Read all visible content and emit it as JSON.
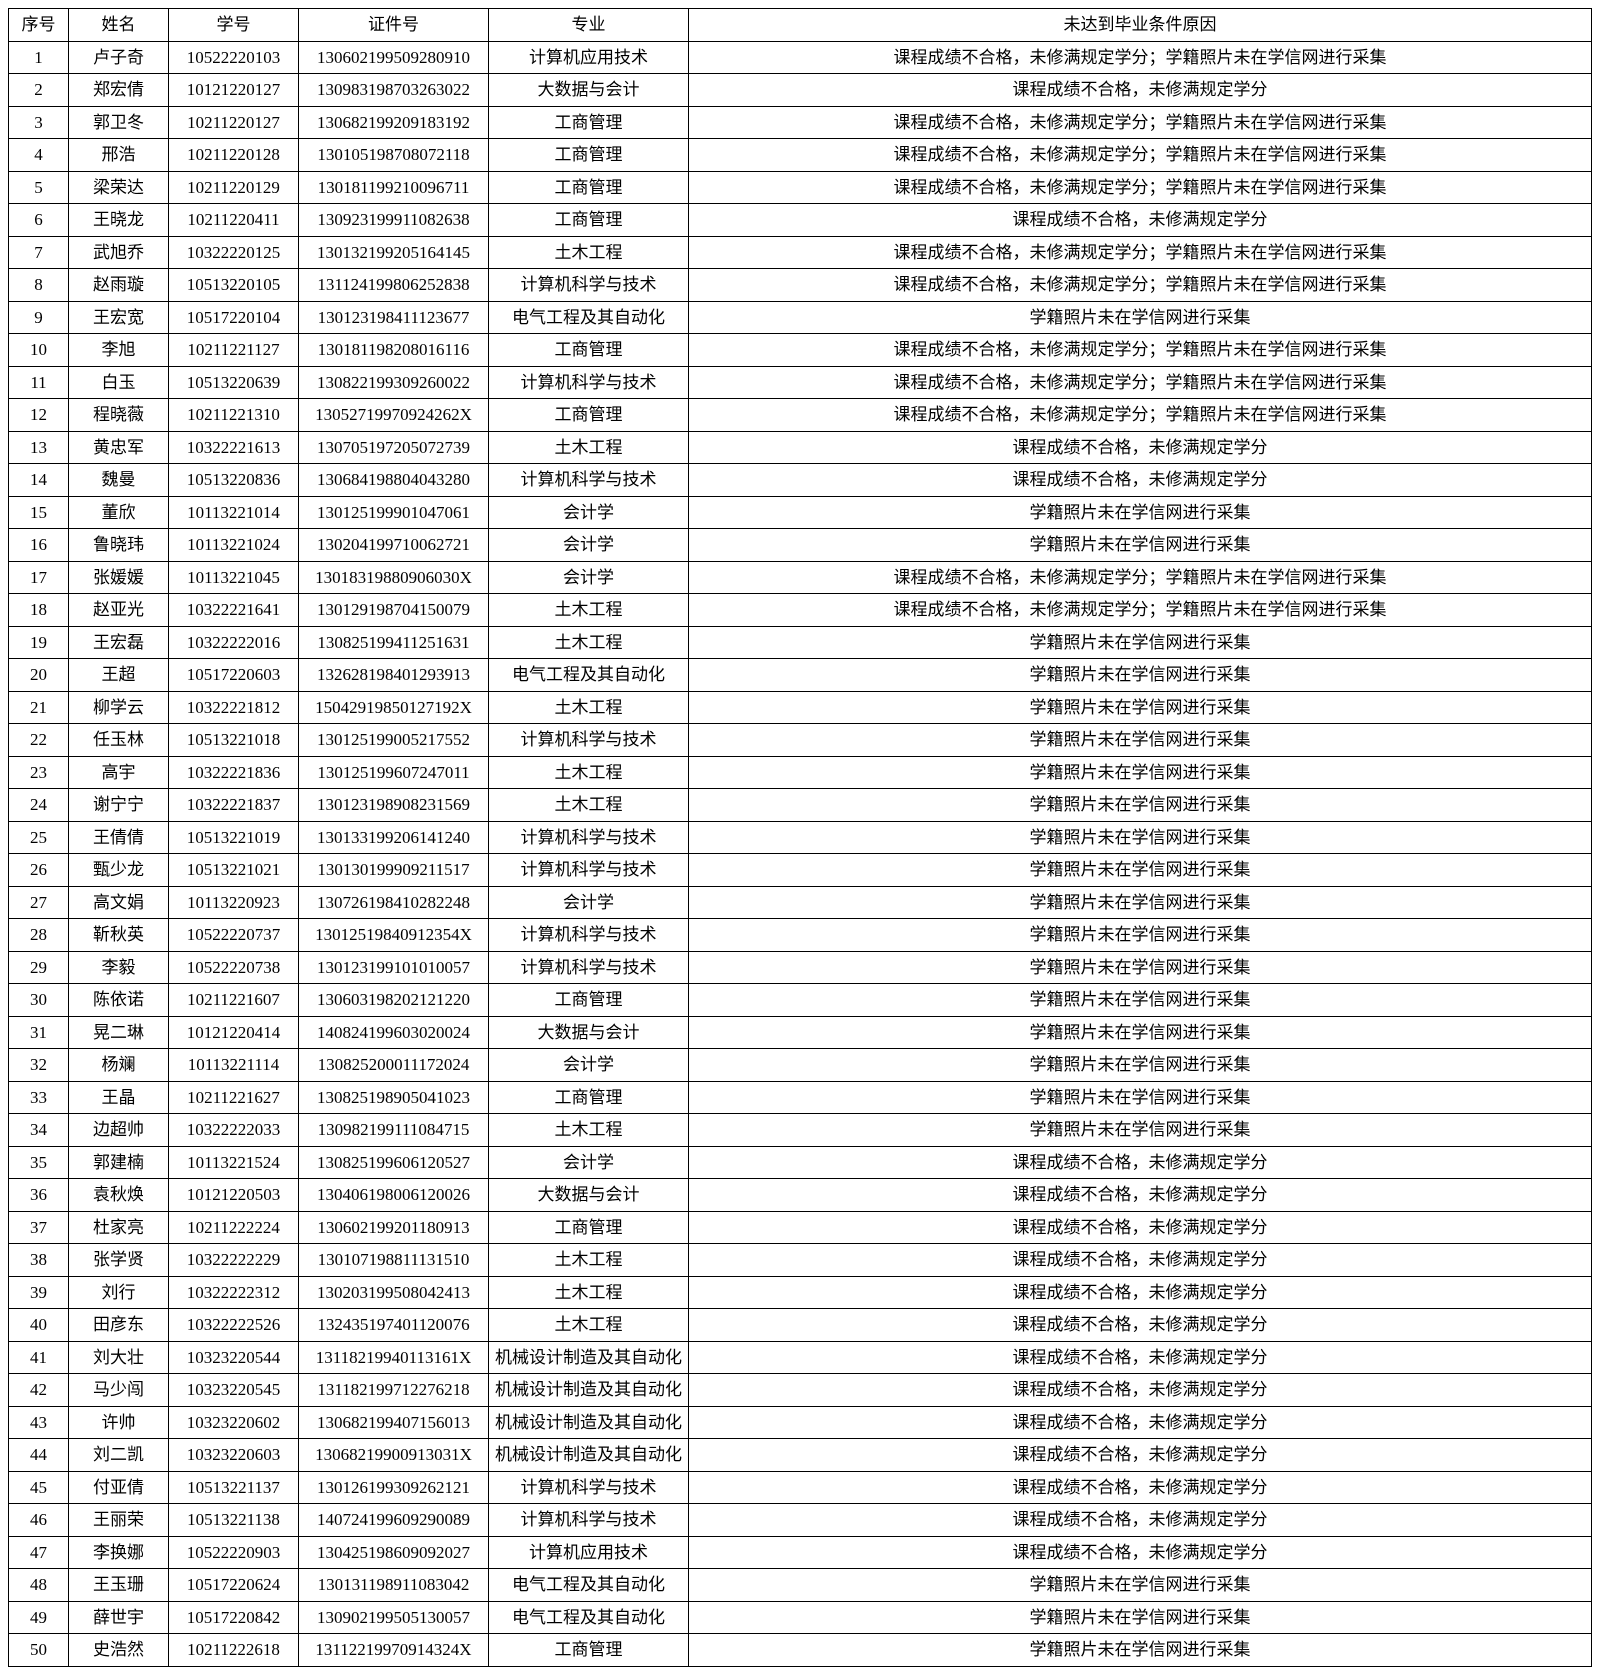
{
  "table": {
    "headers": {
      "seq": "序号",
      "name": "姓名",
      "studentId": "学号",
      "certId": "证件号",
      "major": "专业",
      "reason": "未达到毕业条件原因"
    },
    "rows": [
      {
        "seq": "1",
        "name": "卢子奇",
        "studentId": "10522220103",
        "certId": "130602199509280910",
        "major": "计算机应用技术",
        "reason": "课程成绩不合格，未修满规定学分；学籍照片未在学信网进行采集"
      },
      {
        "seq": "2",
        "name": "郑宏倩",
        "studentId": "10121220127",
        "certId": "130983198703263022",
        "major": "大数据与会计",
        "reason": "课程成绩不合格，未修满规定学分"
      },
      {
        "seq": "3",
        "name": "郭卫冬",
        "studentId": "10211220127",
        "certId": "130682199209183192",
        "major": "工商管理",
        "reason": "课程成绩不合格，未修满规定学分；学籍照片未在学信网进行采集"
      },
      {
        "seq": "4",
        "name": "邢浩",
        "studentId": "10211220128",
        "certId": "130105198708072118",
        "major": "工商管理",
        "reason": "课程成绩不合格，未修满规定学分；学籍照片未在学信网进行采集"
      },
      {
        "seq": "5",
        "name": "梁荣达",
        "studentId": "10211220129",
        "certId": "130181199210096711",
        "major": "工商管理",
        "reason": "课程成绩不合格，未修满规定学分；学籍照片未在学信网进行采集"
      },
      {
        "seq": "6",
        "name": "王晓龙",
        "studentId": "10211220411",
        "certId": "130923199911082638",
        "major": "工商管理",
        "reason": "课程成绩不合格，未修满规定学分"
      },
      {
        "seq": "7",
        "name": "武旭乔",
        "studentId": "10322220125",
        "certId": "130132199205164145",
        "major": "土木工程",
        "reason": "课程成绩不合格，未修满规定学分；学籍照片未在学信网进行采集"
      },
      {
        "seq": "8",
        "name": "赵雨璇",
        "studentId": "10513220105",
        "certId": "131124199806252838",
        "major": "计算机科学与技术",
        "reason": "课程成绩不合格，未修满规定学分；学籍照片未在学信网进行采集"
      },
      {
        "seq": "9",
        "name": "王宏宽",
        "studentId": "10517220104",
        "certId": "130123198411123677",
        "major": "电气工程及其自动化",
        "reason": "学籍照片未在学信网进行采集"
      },
      {
        "seq": "10",
        "name": "李旭",
        "studentId": "10211221127",
        "certId": "130181198208016116",
        "major": "工商管理",
        "reason": "课程成绩不合格，未修满规定学分；学籍照片未在学信网进行采集"
      },
      {
        "seq": "11",
        "name": "白玉",
        "studentId": "10513220639",
        "certId": "130822199309260022",
        "major": "计算机科学与技术",
        "reason": "课程成绩不合格，未修满规定学分；学籍照片未在学信网进行采集"
      },
      {
        "seq": "12",
        "name": "程晓薇",
        "studentId": "10211221310",
        "certId": "13052719970924262X",
        "major": "工商管理",
        "reason": "课程成绩不合格，未修满规定学分；学籍照片未在学信网进行采集"
      },
      {
        "seq": "13",
        "name": "黄忠军",
        "studentId": "10322221613",
        "certId": "130705197205072739",
        "major": "土木工程",
        "reason": "课程成绩不合格，未修满规定学分"
      },
      {
        "seq": "14",
        "name": "魏曼",
        "studentId": "10513220836",
        "certId": "130684198804043280",
        "major": "计算机科学与技术",
        "reason": "课程成绩不合格，未修满规定学分"
      },
      {
        "seq": "15",
        "name": "董欣",
        "studentId": "10113221014",
        "certId": "130125199901047061",
        "major": "会计学",
        "reason": "学籍照片未在学信网进行采集"
      },
      {
        "seq": "16",
        "name": "鲁晓玮",
        "studentId": "10113221024",
        "certId": "130204199710062721",
        "major": "会计学",
        "reason": "学籍照片未在学信网进行采集"
      },
      {
        "seq": "17",
        "name": "张媛媛",
        "studentId": "10113221045",
        "certId": "13018319880906030X",
        "major": "会计学",
        "reason": "课程成绩不合格，未修满规定学分；学籍照片未在学信网进行采集"
      },
      {
        "seq": "18",
        "name": "赵亚光",
        "studentId": "10322221641",
        "certId": "130129198704150079",
        "major": "土木工程",
        "reason": "课程成绩不合格，未修满规定学分；学籍照片未在学信网进行采集"
      },
      {
        "seq": "19",
        "name": "王宏磊",
        "studentId": "10322222016",
        "certId": "130825199411251631",
        "major": "土木工程",
        "reason": "学籍照片未在学信网进行采集"
      },
      {
        "seq": "20",
        "name": "王超",
        "studentId": "10517220603",
        "certId": "132628198401293913",
        "major": "电气工程及其自动化",
        "reason": "学籍照片未在学信网进行采集"
      },
      {
        "seq": "21",
        "name": "柳学云",
        "studentId": "10322221812",
        "certId": "15042919850127192X",
        "major": "土木工程",
        "reason": "学籍照片未在学信网进行采集"
      },
      {
        "seq": "22",
        "name": "任玉林",
        "studentId": "10513221018",
        "certId": "130125199005217552",
        "major": "计算机科学与技术",
        "reason": "学籍照片未在学信网进行采集"
      },
      {
        "seq": "23",
        "name": "高宇",
        "studentId": "10322221836",
        "certId": "130125199607247011",
        "major": "土木工程",
        "reason": "学籍照片未在学信网进行采集"
      },
      {
        "seq": "24",
        "name": "谢宁宁",
        "studentId": "10322221837",
        "certId": "130123198908231569",
        "major": "土木工程",
        "reason": "学籍照片未在学信网进行采集"
      },
      {
        "seq": "25",
        "name": "王倩倩",
        "studentId": "10513221019",
        "certId": "130133199206141240",
        "major": "计算机科学与技术",
        "reason": "学籍照片未在学信网进行采集"
      },
      {
        "seq": "26",
        "name": "甄少龙",
        "studentId": "10513221021",
        "certId": "130130199909211517",
        "major": "计算机科学与技术",
        "reason": "学籍照片未在学信网进行采集"
      },
      {
        "seq": "27",
        "name": "高文娟",
        "studentId": "10113220923",
        "certId": "130726198410282248",
        "major": "会计学",
        "reason": "学籍照片未在学信网进行采集"
      },
      {
        "seq": "28",
        "name": "靳秋英",
        "studentId": "10522220737",
        "certId": "13012519840912354X",
        "major": "计算机科学与技术",
        "reason": "学籍照片未在学信网进行采集"
      },
      {
        "seq": "29",
        "name": "李毅",
        "studentId": "10522220738",
        "certId": "130123199101010057",
        "major": "计算机科学与技术",
        "reason": "学籍照片未在学信网进行采集"
      },
      {
        "seq": "30",
        "name": "陈依诺",
        "studentId": "10211221607",
        "certId": "130603198202121220",
        "major": "工商管理",
        "reason": "学籍照片未在学信网进行采集"
      },
      {
        "seq": "31",
        "name": "晃二琳",
        "studentId": "10121220414",
        "certId": "140824199603020024",
        "major": "大数据与会计",
        "reason": "学籍照片未在学信网进行采集"
      },
      {
        "seq": "32",
        "name": "杨斓",
        "studentId": "10113221114",
        "certId": "130825200011172024",
        "major": "会计学",
        "reason": "学籍照片未在学信网进行采集"
      },
      {
        "seq": "33",
        "name": "王晶",
        "studentId": "10211221627",
        "certId": "130825198905041023",
        "major": "工商管理",
        "reason": "学籍照片未在学信网进行采集"
      },
      {
        "seq": "34",
        "name": "边超帅",
        "studentId": "10322222033",
        "certId": "130982199111084715",
        "major": "土木工程",
        "reason": "学籍照片未在学信网进行采集"
      },
      {
        "seq": "35",
        "name": "郭建楠",
        "studentId": "10113221524",
        "certId": "130825199606120527",
        "major": "会计学",
        "reason": "课程成绩不合格，未修满规定学分"
      },
      {
        "seq": "36",
        "name": "袁秋焕",
        "studentId": "10121220503",
        "certId": "130406198006120026",
        "major": "大数据与会计",
        "reason": "课程成绩不合格，未修满规定学分"
      },
      {
        "seq": "37",
        "name": "杜家亮",
        "studentId": "10211222224",
        "certId": "130602199201180913",
        "major": "工商管理",
        "reason": "课程成绩不合格，未修满规定学分"
      },
      {
        "seq": "38",
        "name": "张学贤",
        "studentId": "10322222229",
        "certId": "130107198811131510",
        "major": "土木工程",
        "reason": "课程成绩不合格，未修满规定学分"
      },
      {
        "seq": "39",
        "name": "刘行",
        "studentId": "10322222312",
        "certId": "130203199508042413",
        "major": "土木工程",
        "reason": "课程成绩不合格，未修满规定学分"
      },
      {
        "seq": "40",
        "name": "田彦东",
        "studentId": "10322222526",
        "certId": "132435197401120076",
        "major": "土木工程",
        "reason": "课程成绩不合格，未修满规定学分"
      },
      {
        "seq": "41",
        "name": "刘大壮",
        "studentId": "10323220544",
        "certId": "13118219940113161X",
        "major": "机械设计制造及其自动化",
        "reason": "课程成绩不合格，未修满规定学分"
      },
      {
        "seq": "42",
        "name": "马少闯",
        "studentId": "10323220545",
        "certId": "131182199712276218",
        "major": "机械设计制造及其自动化",
        "reason": "课程成绩不合格，未修满规定学分"
      },
      {
        "seq": "43",
        "name": "许帅",
        "studentId": "10323220602",
        "certId": "130682199407156013",
        "major": "机械设计制造及其自动化",
        "reason": "课程成绩不合格，未修满规定学分"
      },
      {
        "seq": "44",
        "name": "刘二凯",
        "studentId": "10323220603",
        "certId": "13068219900913031X",
        "major": "机械设计制造及其自动化",
        "reason": "课程成绩不合格，未修满规定学分"
      },
      {
        "seq": "45",
        "name": "付亚倩",
        "studentId": "10513221137",
        "certId": "130126199309262121",
        "major": "计算机科学与技术",
        "reason": "课程成绩不合格，未修满规定学分"
      },
      {
        "seq": "46",
        "name": "王丽荣",
        "studentId": "10513221138",
        "certId": "140724199609290089",
        "major": "计算机科学与技术",
        "reason": "课程成绩不合格，未修满规定学分"
      },
      {
        "seq": "47",
        "name": "李换娜",
        "studentId": "10522220903",
        "certId": "130425198609092027",
        "major": "计算机应用技术",
        "reason": "课程成绩不合格，未修满规定学分"
      },
      {
        "seq": "48",
        "name": "王玉珊",
        "studentId": "10517220624",
        "certId": "130131198911083042",
        "major": "电气工程及其自动化",
        "reason": "学籍照片未在学信网进行采集"
      },
      {
        "seq": "49",
        "name": "薛世宇",
        "studentId": "10517220842",
        "certId": "130902199505130057",
        "major": "电气工程及其自动化",
        "reason": "学籍照片未在学信网进行采集"
      },
      {
        "seq": "50",
        "name": "史浩然",
        "studentId": "10211222618",
        "certId": "13112219970914324X",
        "major": "工商管理",
        "reason": "学籍照片未在学信网进行采集"
      }
    ]
  }
}
